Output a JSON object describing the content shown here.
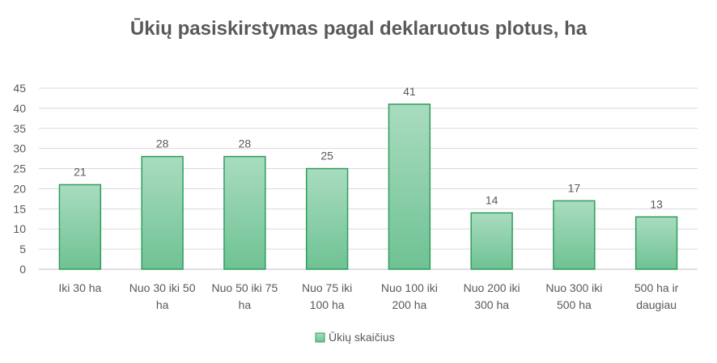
{
  "chart_data": {
    "type": "bar",
    "title": "Ūkių pasiskirstymas pagal deklaruotus plotus, ha",
    "categories": [
      [
        "Iki 30 ha"
      ],
      [
        "Nuo 30 iki 50",
        "ha"
      ],
      [
        "Nuo 50 iki 75",
        "ha"
      ],
      [
        "Nuo 75 iki",
        "100 ha"
      ],
      [
        "Nuo 100 iki",
        "200 ha"
      ],
      [
        "Nuo 200 iki",
        "300 ha"
      ],
      [
        "Nuo 300 iki",
        "500 ha"
      ],
      [
        "500 ha ir",
        "daugiau"
      ]
    ],
    "series": [
      {
        "name": "Ūkių skaičius",
        "values": [
          21,
          28,
          28,
          25,
          41,
          14,
          17,
          13
        ]
      }
    ],
    "ylim": [
      0,
      45
    ],
    "yticks": [
      0,
      5,
      10,
      15,
      20,
      25,
      30,
      35,
      40,
      45
    ],
    "grid": true,
    "legend_position": "bottom",
    "colors": {
      "bar_top": "#a9dcbf",
      "bar_bottom": "#6fc294",
      "bar_stroke": "#2e9e5b",
      "text": "#595959"
    }
  }
}
